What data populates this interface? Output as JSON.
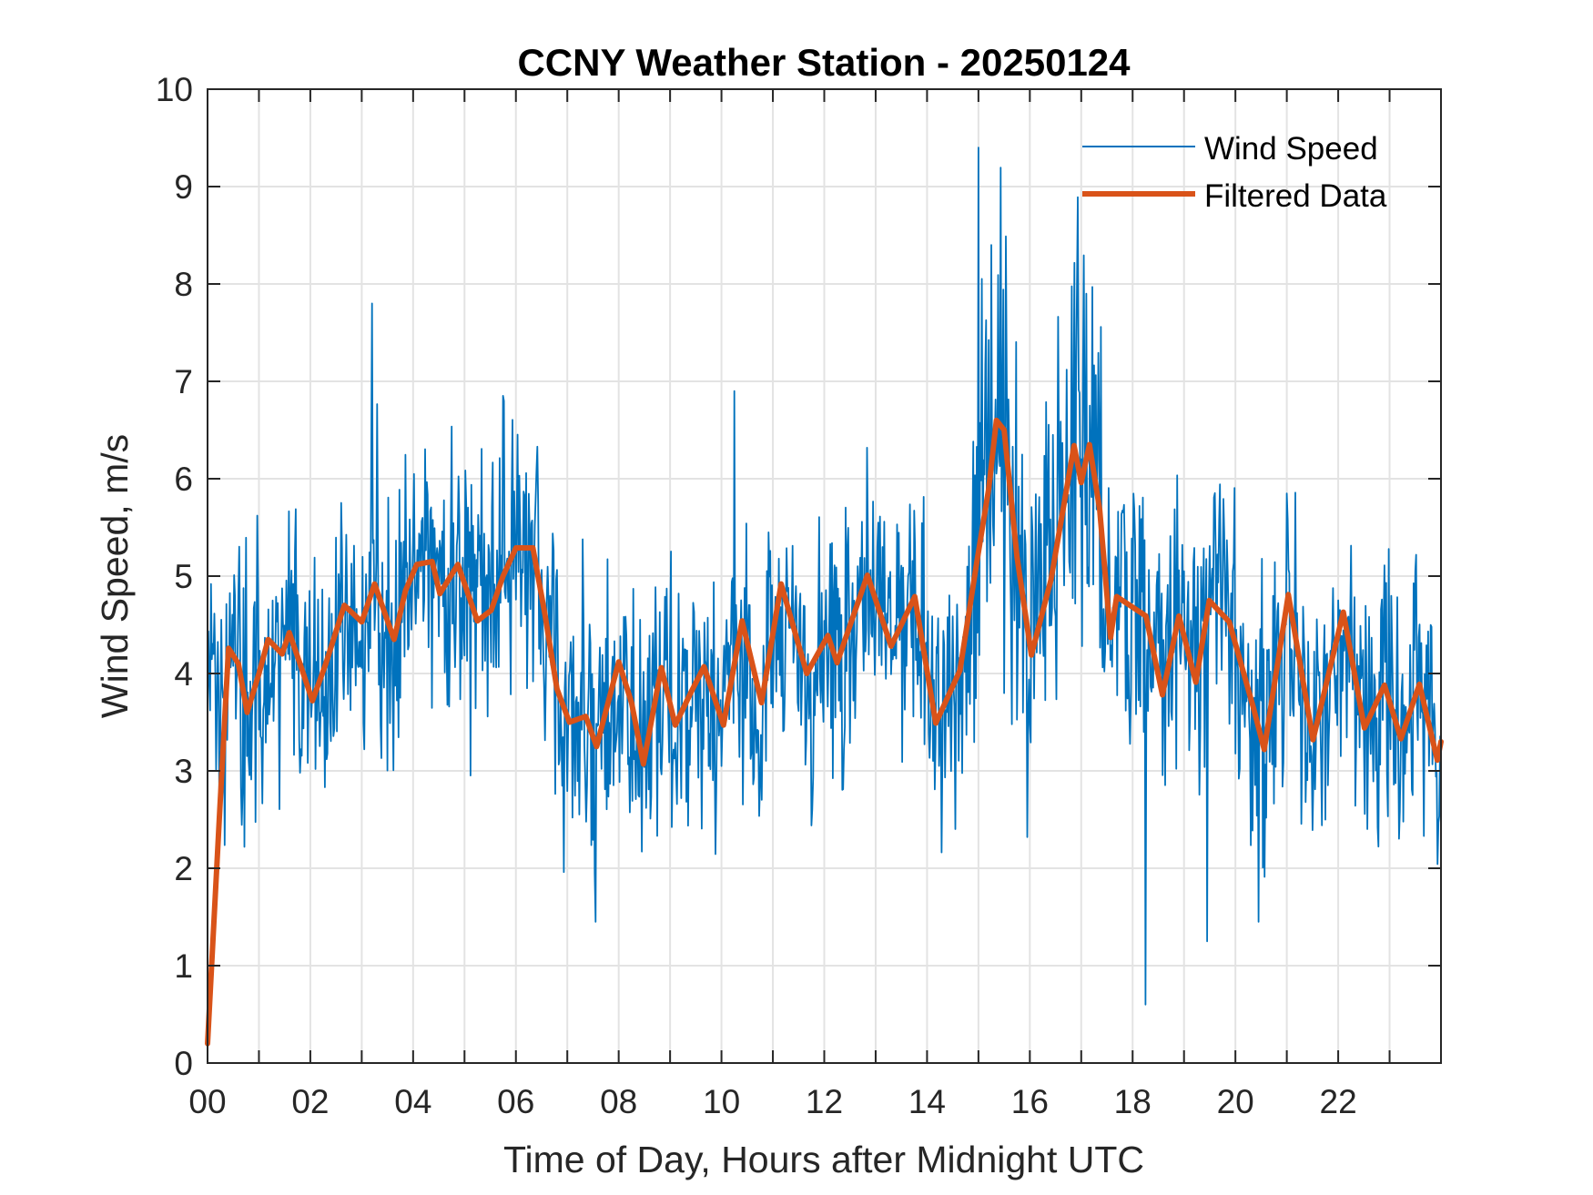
{
  "chart_data": {
    "type": "line",
    "title": "CCNY Weather Station - 20250124",
    "xlabel": "Time of Day, Hours after Midnight UTC",
    "ylabel": "Wind Speed, m/s",
    "xlim": [
      0,
      24
    ],
    "ylim": [
      0,
      10
    ],
    "grid": true,
    "x_ticks": [
      0,
      2,
      4,
      6,
      8,
      10,
      12,
      14,
      16,
      18,
      20,
      22
    ],
    "x_tick_labels": [
      "00",
      "02",
      "04",
      "06",
      "08",
      "10",
      "12",
      "14",
      "16",
      "18",
      "20",
      "22"
    ],
    "x_minor_grid_step_hours": 1,
    "y_ticks": [
      0,
      1,
      2,
      3,
      4,
      5,
      6,
      7,
      8,
      9,
      10
    ],
    "y_tick_labels": [
      "0",
      "1",
      "2",
      "3",
      "4",
      "5",
      "6",
      "7",
      "8",
      "9",
      "10"
    ],
    "legend": {
      "placement": "top-right",
      "entries": [
        "Wind Speed",
        "Filtered Data"
      ]
    },
    "series": [
      {
        "name": "Wind Speed",
        "color": "#0072BD",
        "style": "thin",
        "description": "raw 1-minute-ish samples, noisy around the filtered trend (approx ±1.5 m/s)",
        "notable_points": [
          {
            "x": 3.2,
            "y": 7.8
          },
          {
            "x": 10.25,
            "y": 6.9
          },
          {
            "x": 15.0,
            "y": 9.4
          },
          {
            "x": 15.25,
            "y": 8.4
          },
          {
            "x": 17.1,
            "y": 7.9
          },
          {
            "x": 7.55,
            "y": 1.45
          },
          {
            "x": 18.25,
            "y": 0.6
          },
          {
            "x": 19.45,
            "y": 1.25
          },
          {
            "x": 20.45,
            "y": 1.45
          }
        ]
      },
      {
        "name": "Filtered Data",
        "color": "#D95319",
        "style": "thick",
        "x": [
          0.0,
          0.24,
          0.41,
          0.6,
          0.77,
          1.0,
          1.18,
          1.45,
          1.59,
          1.8,
          2.04,
          2.3,
          2.66,
          3.0,
          3.25,
          3.63,
          3.85,
          4.07,
          4.37,
          4.52,
          4.87,
          5.25,
          5.52,
          5.75,
          6.0,
          6.33,
          6.56,
          6.8,
          7.04,
          7.36,
          7.57,
          8.0,
          8.25,
          8.48,
          8.83,
          9.1,
          9.4,
          9.66,
          10.04,
          10.4,
          10.78,
          11.16,
          11.66,
          12.07,
          12.25,
          12.84,
          13.3,
          13.76,
          14.17,
          14.64,
          14.97,
          15.2,
          15.35,
          15.5,
          15.75,
          16.03,
          16.41,
          16.86,
          17.0,
          17.16,
          17.36,
          17.57,
          17.69,
          18.26,
          18.58,
          18.9,
          19.23,
          19.49,
          19.88,
          20.35,
          20.56,
          21.03,
          21.51,
          22.1,
          22.51,
          22.9,
          23.22,
          23.58,
          23.93,
          24.0
        ],
        "y": [
          0.2,
          2.63,
          4.26,
          4.1,
          3.6,
          4.0,
          4.35,
          4.2,
          4.42,
          4.1,
          3.72,
          4.1,
          4.7,
          4.53,
          4.92,
          4.35,
          4.85,
          5.12,
          5.15,
          4.82,
          5.12,
          4.54,
          4.65,
          5.0,
          5.29,
          5.29,
          4.62,
          3.84,
          3.5,
          3.56,
          3.25,
          4.12,
          3.7,
          3.07,
          4.06,
          3.47,
          3.8,
          4.07,
          3.47,
          4.54,
          3.7,
          4.92,
          4.0,
          4.39,
          4.11,
          5.01,
          4.28,
          4.79,
          3.49,
          4.03,
          5.15,
          5.9,
          6.6,
          6.5,
          5.2,
          4.19,
          4.96,
          6.34,
          5.96,
          6.35,
          5.68,
          4.37,
          4.79,
          4.59,
          3.78,
          4.59,
          3.91,
          4.75,
          4.53,
          3.65,
          3.22,
          4.81,
          3.32,
          4.63,
          3.44,
          3.88,
          3.33,
          3.89,
          3.11,
          3.3
        ]
      }
    ]
  }
}
